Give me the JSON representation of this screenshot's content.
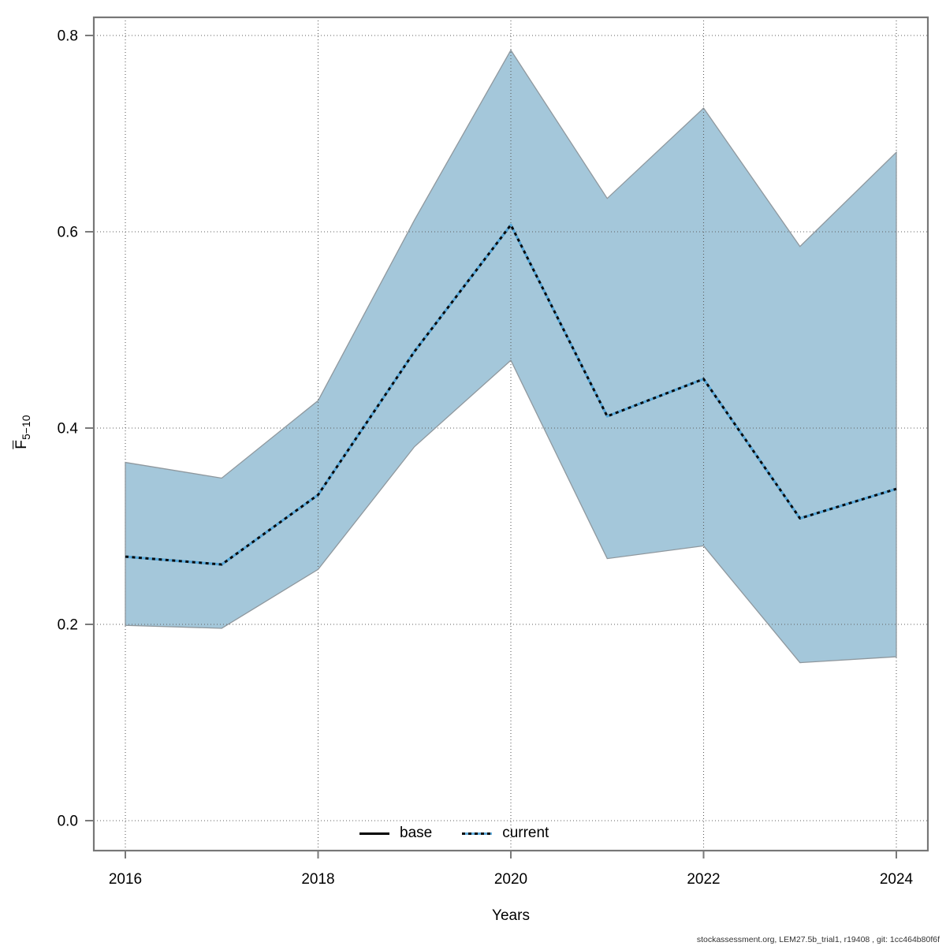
{
  "figure": {
    "xlabel": "Years",
    "ylabel_main": "F",
    "ylabel_sub": "5−10",
    "footer": "stockassessment.org, LEM27.5b_trial1, r19408 , git: 1cc464b80f6f",
    "legend": [
      {
        "label": "base",
        "style": "solid",
        "color": "#000000"
      },
      {
        "label": "current",
        "style": "dotted",
        "color": "#4da0d4"
      }
    ]
  },
  "chart_data": {
    "type": "line",
    "title": "",
    "xlabel": "Years",
    "ylabel": "Fbar 5-10",
    "grid": true,
    "legend_position": "bottom-center",
    "x": [
      2016,
      2017,
      2018,
      2019,
      2020,
      2021,
      2022,
      2023,
      2024
    ],
    "x_ticks": [
      2016,
      2018,
      2020,
      2022,
      2024
    ],
    "x_tick_labels": [
      "2016",
      "2018",
      "2020",
      "2022",
      "2024"
    ],
    "y_ticks": [
      0.0,
      0.2,
      0.4,
      0.6,
      0.8
    ],
    "y_tick_labels": [
      "0.0",
      "0.2",
      "0.4",
      "0.6",
      "0.8"
    ],
    "ylim": [
      -0.03,
      0.82
    ],
    "series": [
      {
        "name": "current",
        "style": "dotted",
        "line_colors": [
          "#0a0a0a",
          "#58a9da"
        ],
        "values": [
          0.269,
          0.261,
          0.332,
          0.478,
          0.607,
          0.412,
          0.45,
          0.308,
          0.338
        ]
      }
    ],
    "band": {
      "name": "confidence-interval",
      "color": "#a4c7da",
      "edge_color": "#8f989e",
      "upper": [
        0.365,
        0.349,
        0.428,
        0.612,
        0.785,
        0.634,
        0.726,
        0.585,
        0.681
      ],
      "lower": [
        0.199,
        0.196,
        0.256,
        0.381,
        0.469,
        0.267,
        0.28,
        0.161,
        0.167
      ]
    }
  }
}
